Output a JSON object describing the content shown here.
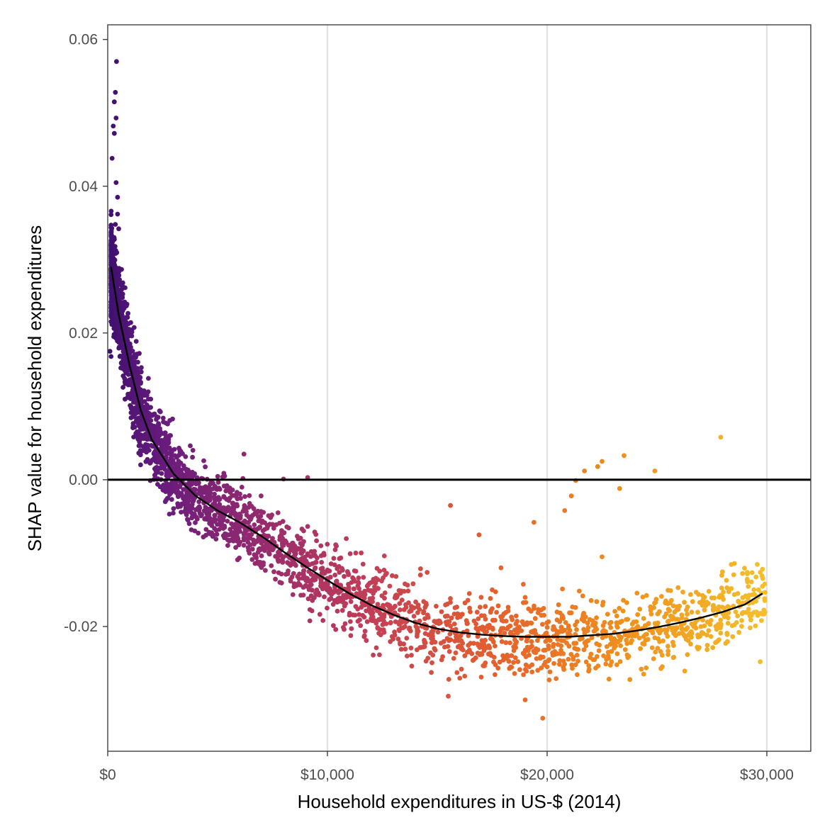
{
  "chart_data": {
    "type": "scatter",
    "title": "",
    "xlabel": "Household expenditures in US-$ (2014)",
    "ylabel": "SHAP value for household expenditures",
    "xlim": [
      0,
      32000
    ],
    "ylim": [
      -0.037,
      0.062
    ],
    "x_ticks": [
      0,
      10000,
      20000,
      30000
    ],
    "x_tick_labels": [
      "$0",
      "$10,000",
      "$20,000",
      "$30,000"
    ],
    "y_ticks": [
      -0.02,
      0.0,
      0.02,
      0.04,
      0.06
    ],
    "y_tick_labels": [
      "-0.02",
      "0.00",
      "0.02",
      "0.04",
      "0.06"
    ],
    "grid": "vertical major lines only",
    "reference_line_y": 0,
    "color_scale": [
      "#3b0f6f",
      "#6a1c7c",
      "#952b6e",
      "#c23e57",
      "#e45f2e",
      "#f0901c",
      "#f4c02b"
    ],
    "trend_line": {
      "x": [
        150,
        500,
        1000,
        1500,
        2000,
        3000,
        4000,
        5000,
        6000,
        7000,
        8000,
        9000,
        10000,
        11000,
        12000,
        13000,
        14000,
        15000,
        16000,
        17000,
        18000,
        19000,
        20000,
        21000,
        22000,
        23000,
        24000,
        25000,
        26000,
        27000,
        28000,
        29000,
        29800
      ],
      "y": [
        0.029,
        0.0225,
        0.0155,
        0.0095,
        0.0055,
        0.0008,
        -0.0022,
        -0.0042,
        -0.0058,
        -0.0077,
        -0.0098,
        -0.0118,
        -0.0137,
        -0.0155,
        -0.0171,
        -0.0184,
        -0.0195,
        -0.0203,
        -0.0208,
        -0.0211,
        -0.0213,
        -0.0214,
        -0.0214,
        -0.0214,
        -0.0212,
        -0.021,
        -0.0206,
        -0.0201,
        -0.0195,
        -0.0188,
        -0.018,
        -0.017,
        -0.0155
      ]
    },
    "outlier_points": [
      {
        "x": 100,
        "y": 0.0175
      },
      {
        "x": 150,
        "y": 0.0168
      },
      {
        "x": 400,
        "y": 0.057
      },
      {
        "x": 350,
        "y": 0.0528
      },
      {
        "x": 300,
        "y": 0.0515
      },
      {
        "x": 380,
        "y": 0.0493
      },
      {
        "x": 250,
        "y": 0.0482
      },
      {
        "x": 300,
        "y": 0.0472
      },
      {
        "x": 200,
        "y": 0.0438
      },
      {
        "x": 380,
        "y": 0.0405
      },
      {
        "x": 450,
        "y": 0.0385
      },
      {
        "x": 450,
        "y": 0.0362
      },
      {
        "x": 350,
        "y": 0.0348
      },
      {
        "x": 500,
        "y": 0.0342
      },
      {
        "x": 9100,
        "y": 0.0003
      },
      {
        "x": 6200,
        "y": 0.0035
      },
      {
        "x": 8000,
        "y": 0.0001
      },
      {
        "x": 27900,
        "y": 0.0058
      },
      {
        "x": 23500,
        "y": 0.0033
      },
      {
        "x": 22500,
        "y": 0.0025
      },
      {
        "x": 24900,
        "y": 0.0012
      },
      {
        "x": 21700,
        "y": 0.0012
      },
      {
        "x": 22300,
        "y": 0.0018
      },
      {
        "x": 21300,
        "y": -0.0001
      },
      {
        "x": 21100,
        "y": -0.0022
      },
      {
        "x": 20800,
        "y": -0.0042
      },
      {
        "x": 23300,
        "y": -0.0012
      },
      {
        "x": 22500,
        "y": -0.0105
      },
      {
        "x": 19400,
        "y": -0.0058
      },
      {
        "x": 17900,
        "y": -0.012
      },
      {
        "x": 16900,
        "y": -0.0075
      },
      {
        "x": 15600,
        "y": -0.0035
      },
      {
        "x": 15500,
        "y": -0.0295
      },
      {
        "x": 19800,
        "y": -0.0325
      },
      {
        "x": 19000,
        "y": -0.03
      },
      {
        "x": 29800,
        "y": -0.0122
      },
      {
        "x": 29900,
        "y": -0.0162
      },
      {
        "x": 29700,
        "y": -0.0248
      }
    ]
  }
}
